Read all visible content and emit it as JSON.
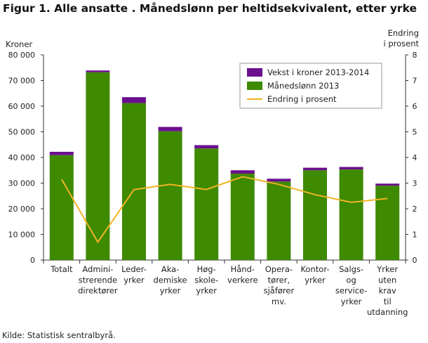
{
  "figure": {
    "title": "Figur 1. Alle ansatte . Månedslønn per heltidsekvivalent, etter yrke",
    "source": "Kilde: Statistisk sentralbyrå."
  },
  "chart_data": {
    "type": "bar",
    "stacked": true,
    "title": "Figur 1. Alle ansatte . Månedslønn per heltidsekvivalent, etter yrke",
    "ylabel": "Kroner",
    "y2label": [
      "Endring",
      "i prosent"
    ],
    "ylim": [
      0,
      80000
    ],
    "y2lim": [
      0,
      8
    ],
    "yticks": [
      "0",
      "10 000",
      "20 000",
      "30 000",
      "40 000",
      "50 000",
      "60 000",
      "70 000",
      "80 000"
    ],
    "y2ticks": [
      "0",
      "1",
      "2",
      "3",
      "4",
      "5",
      "6",
      "7",
      "8"
    ],
    "grid": false,
    "legend_position": "top-right",
    "categories": [
      [
        "Totalt"
      ],
      [
        "Admini-",
        "strerende",
        "direktører"
      ],
      [
        "Leder-",
        "yrker"
      ],
      [
        "Aka-",
        "demiske",
        "yrker"
      ],
      [
        "Høg-",
        "skole-",
        "yrker"
      ],
      [
        "Hånd-",
        "verkere"
      ],
      [
        "Opera-",
        "tører,",
        "sjåfører",
        "mv."
      ],
      [
        "Kontor-",
        "yrker"
      ],
      [
        "Salgs-",
        "og",
        "service-",
        "yrker"
      ],
      [
        "Yrker",
        "uten",
        "krav",
        "til",
        "utdanning"
      ]
    ],
    "series": [
      {
        "name": "Vekst i kroner 2013-2014",
        "kind": "bar-stack-top",
        "color": "#6a0f8e",
        "values": [
          1300,
          700,
          2300,
          1700,
          1300,
          1300,
          1100,
          1000,
          1000,
          800
        ]
      },
      {
        "name": "Månedslønn 2013",
        "kind": "bar",
        "color": "#3e8a00",
        "values": [
          40900,
          73200,
          61200,
          50200,
          43500,
          33700,
          30600,
          35000,
          35300,
          29000
        ]
      },
      {
        "name": "Endring i prosent",
        "kind": "line",
        "axis": "right",
        "color": "#f0b323",
        "values": [
          3.15,
          0.7,
          2.75,
          2.95,
          2.75,
          3.25,
          2.95,
          2.55,
          2.25,
          2.4
        ]
      }
    ]
  }
}
